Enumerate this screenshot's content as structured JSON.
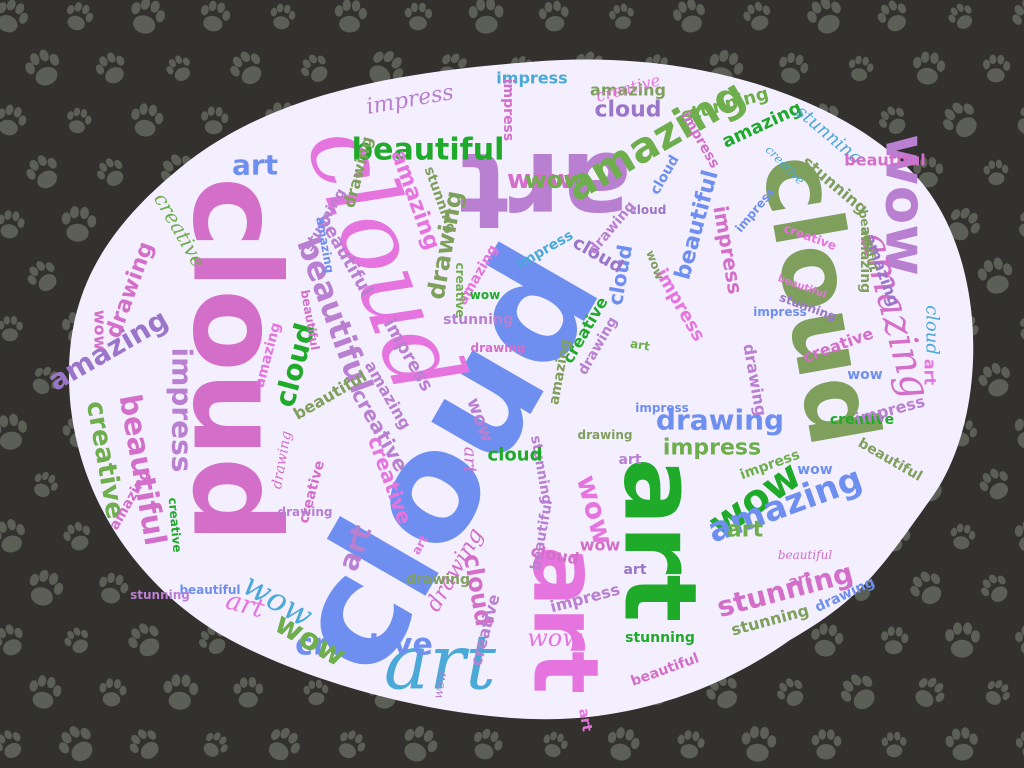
{
  "colors": {
    "background": "#33312d",
    "paw": "#5b5f55",
    "blob": "#f3efff",
    "palette": [
      "#6f8ff0",
      "#d36ec9",
      "#b97fd0",
      "#e574df",
      "#7fa05c",
      "#1faa2a",
      "#4aa9d6",
      "#9b75c9",
      "#6fae4c"
    ]
  },
  "words": [
    {
      "text": "cloud",
      "color": "#6f8ff0",
      "font": "sans"
    },
    {
      "text": "cloud",
      "color": "#d36ec9",
      "font": "sans"
    },
    {
      "text": "art",
      "color": "#b97fd0",
      "font": "sans"
    },
    {
      "text": "cloud",
      "color": "#e574df",
      "font": "script"
    },
    {
      "text": "cloud",
      "color": "#7fa05c",
      "font": "sans"
    },
    {
      "text": "art",
      "color": "#1faa2a",
      "font": "sans"
    },
    {
      "text": "art",
      "color": "#e574df",
      "font": "sans"
    },
    {
      "text": "art",
      "color": "#4aa9d6",
      "font": "script"
    },
    {
      "text": "wow",
      "color": "#b97fd0",
      "font": "sans"
    },
    {
      "text": "amazing",
      "color": "#6fae4c",
      "font": "sans"
    },
    {
      "text": "beautiful",
      "color": "#1faa2a",
      "font": "sans"
    },
    {
      "text": "amazing",
      "color": "#d36ec9",
      "font": "script"
    },
    {
      "text": "wow",
      "color": "#1faa2a",
      "font": "sans"
    },
    {
      "text": "amazing",
      "color": "#6f8ff0",
      "font": "sans"
    },
    {
      "text": "drawing",
      "color": "#6f8ff0",
      "font": "sans"
    },
    {
      "text": "impress",
      "color": "#6fae4c",
      "font": "sans"
    },
    {
      "text": "art",
      "color": "#6f8ff0",
      "font": "sans"
    },
    {
      "text": "beautiful",
      "color": "#d36ec9",
      "font": "sans"
    },
    {
      "text": "impress",
      "color": "#b97fd0",
      "font": "sans"
    },
    {
      "text": "amazing",
      "color": "#9b75c9",
      "font": "sans"
    },
    {
      "text": "creative",
      "color": "#6fae4c",
      "font": "sans"
    },
    {
      "text": "beautiful",
      "color": "#b97fd0",
      "font": "sans"
    },
    {
      "text": "drawing",
      "color": "#d36ec9",
      "font": "sans"
    },
    {
      "text": "stunning",
      "color": "#d36ec9",
      "font": "sans"
    },
    {
      "text": "creative",
      "color": "#6f8ff0",
      "font": "sans"
    },
    {
      "text": "drawing",
      "color": "#7fa05c",
      "font": "sans"
    },
    {
      "text": "cloud",
      "color": "#1faa2a",
      "font": "sans"
    },
    {
      "text": "wow",
      "color": "#e574df",
      "font": "sans"
    },
    {
      "text": "wow",
      "color": "#d36ec9",
      "font": "sans"
    },
    {
      "text": "wow",
      "color": "#6fae4c",
      "font": "sans"
    },
    {
      "text": "wow",
      "color": "#4aa9d6",
      "font": "script"
    },
    {
      "text": "cloud",
      "color": "#d36ec9",
      "font": "sans"
    },
    {
      "text": "creative",
      "color": "#b97fd0",
      "font": "sans"
    },
    {
      "text": "creative",
      "color": "#6fae4c",
      "font": "script"
    },
    {
      "text": "drawing",
      "color": "#d36ec9",
      "font": "script"
    },
    {
      "text": "art",
      "color": "#e574df",
      "font": "script"
    },
    {
      "text": "art",
      "color": "#b97fd0",
      "font": "sans"
    },
    {
      "text": "art",
      "color": "#6fae4c",
      "font": "sans"
    },
    {
      "text": "cloud",
      "color": "#9b75c9",
      "font": "sans"
    },
    {
      "text": "wow",
      "color": "#e574df",
      "font": "script"
    },
    {
      "text": "beautiful",
      "color": "#6f8ff0",
      "font": "sans"
    },
    {
      "text": "impress",
      "color": "#d36ec9",
      "font": "sans"
    },
    {
      "text": "stunning",
      "color": "#6fae4c",
      "font": "sans"
    },
    {
      "text": "amazing",
      "color": "#1faa2a",
      "font": "sans"
    },
    {
      "text": "stunning",
      "color": "#4aa9d6",
      "font": "script"
    },
    {
      "text": "impress",
      "color": "#b97fd0",
      "font": "script"
    },
    {
      "text": "wow",
      "color": "#6fae4c",
      "font": "sans"
    },
    {
      "text": "amazing",
      "color": "#e574df",
      "font": "sans"
    },
    {
      "text": "beautiful",
      "color": "#b97fd0",
      "font": "sans"
    },
    {
      "text": "creative",
      "color": "#e574df",
      "font": "sans"
    },
    {
      "text": "impress",
      "color": "#e574df",
      "font": "sans"
    },
    {
      "text": "creative",
      "color": "#1faa2a",
      "font": "sans"
    },
    {
      "text": "stunning",
      "color": "#b97fd0",
      "font": "sans"
    },
    {
      "text": "cloud",
      "color": "#6f8ff0",
      "font": "sans"
    },
    {
      "text": "cloud",
      "color": "#9b75c9",
      "font": "sans"
    },
    {
      "text": "drawing",
      "color": "#b97fd0",
      "font": "sans"
    },
    {
      "text": "stunning",
      "color": "#7fa05c",
      "font": "sans"
    },
    {
      "text": "amazing",
      "color": "#9b75c9",
      "font": "sans"
    },
    {
      "text": "art",
      "color": "#e574df",
      "font": "sans"
    },
    {
      "text": "impress",
      "color": "#b97fd0",
      "font": "sans"
    },
    {
      "text": "wow",
      "color": "#6f8ff0",
      "font": "sans"
    },
    {
      "text": "creative",
      "color": "#d36ec9",
      "font": "sans"
    },
    {
      "text": "beautiful",
      "color": "#7fa05c",
      "font": "sans"
    },
    {
      "text": "drawing",
      "color": "#7fa05c",
      "font": "sans"
    },
    {
      "text": "stunning",
      "color": "#b97fd0",
      "font": "sans"
    },
    {
      "text": "amazing",
      "color": "#d36ec9",
      "font": "sans"
    },
    {
      "text": "impress",
      "color": "#6f8ff0",
      "font": "sans"
    },
    {
      "text": "art",
      "color": "#b97fd0",
      "font": "sans"
    },
    {
      "text": "art",
      "color": "#d36ec9",
      "font": "script"
    },
    {
      "text": "creative",
      "color": "#4aa9d6",
      "font": "script"
    },
    {
      "text": "beautiful",
      "color": "#d36ec9",
      "font": "sans"
    },
    {
      "text": "impress",
      "color": "#4aa9d6",
      "font": "sans"
    },
    {
      "text": "drawing",
      "color": "#d36ec9",
      "font": "script"
    },
    {
      "text": "amazing",
      "color": "#7fa05c",
      "font": "sans"
    },
    {
      "text": "stunning",
      "color": "#7fa05c",
      "font": "sans"
    },
    {
      "text": "wow",
      "color": "#d36ec9",
      "font": "sans"
    },
    {
      "text": "cloud",
      "color": "#4aa9d6",
      "font": "script"
    },
    {
      "text": "art",
      "color": "#e574df",
      "font": "sans"
    },
    {
      "text": "impress",
      "color": "#d36ec9",
      "font": "sans"
    },
    {
      "text": "beautiful",
      "color": "#6f8ff0",
      "font": "sans"
    },
    {
      "text": "creative",
      "color": "#1faa2a",
      "font": "sans"
    },
    {
      "text": "drawing",
      "color": "#b97fd0",
      "font": "sans"
    },
    {
      "text": "amazing",
      "color": "#e574df",
      "font": "sans"
    },
    {
      "text": "stunning",
      "color": "#b97fd0",
      "font": "sans"
    },
    {
      "text": "cloud",
      "color": "#6f8ff0",
      "font": "sans"
    },
    {
      "text": "wow",
      "color": "#1faa2a",
      "font": "sans"
    },
    {
      "text": "beautiful",
      "color": "#7fa05c",
      "font": "sans"
    },
    {
      "text": "impress",
      "color": "#b97fd0",
      "font": "sans"
    },
    {
      "text": "drawing",
      "color": "#7fa05c",
      "font": "sans"
    },
    {
      "text": "amazing",
      "color": "#b97fd0",
      "font": "sans"
    },
    {
      "text": "creative",
      "color": "#e574df",
      "font": "sans"
    },
    {
      "text": "beautiful",
      "color": "#e574df",
      "font": "sans"
    },
    {
      "text": "wow",
      "color": "#6f8ff0",
      "font": "sans"
    },
    {
      "text": "cloud",
      "color": "#9b75c9",
      "font": "sans"
    },
    {
      "text": "art",
      "color": "#6fae4c",
      "font": "sans"
    },
    {
      "text": "impress",
      "color": "#4aa9d6",
      "font": "sans"
    },
    {
      "text": "beautiful",
      "color": "#d36ec9",
      "font": "script"
    },
    {
      "text": "drawing",
      "color": "#6f8ff0",
      "font": "sans"
    },
    {
      "text": "stunning",
      "color": "#9b75c9",
      "font": "sans"
    },
    {
      "text": "creative",
      "color": "#1faa2a",
      "font": "sans"
    },
    {
      "text": "amazing",
      "color": "#7fa05c",
      "font": "sans"
    },
    {
      "text": "art",
      "color": "#d36ec9",
      "font": "sans"
    },
    {
      "text": "wow",
      "color": "#b97fd0",
      "font": "script"
    },
    {
      "text": "beautiful",
      "color": "#d36ec9",
      "font": "sans"
    },
    {
      "text": "impress",
      "color": "#b97fd0",
      "font": "sans"
    },
    {
      "text": "drawing",
      "color": "#7fa05c",
      "font": "sans"
    },
    {
      "text": "amazing",
      "color": "#e574df",
      "font": "sans"
    },
    {
      "text": "cloud",
      "color": "#1faa2a",
      "font": "sans"
    },
    {
      "text": "wow",
      "color": "#b97fd0",
      "font": "sans"
    },
    {
      "text": "impress",
      "color": "#6f8ff0",
      "font": "sans"
    },
    {
      "text": "stunning",
      "color": "#7fa05c",
      "font": "sans"
    },
    {
      "text": "creative",
      "color": "#d36ec9",
      "font": "sans"
    },
    {
      "text": "drawing",
      "color": "#b97fd0",
      "font": "sans"
    },
    {
      "text": "impress",
      "color": "#d36ec9",
      "font": "sans"
    },
    {
      "text": "amazing",
      "color": "#6f8ff0",
      "font": "sans"
    },
    {
      "text": "beautiful",
      "color": "#7fa05c",
      "font": "sans"
    },
    {
      "text": "wow",
      "color": "#d36ec9",
      "font": "sans"
    },
    {
      "text": "drawing",
      "color": "#b97fd0",
      "font": "sans"
    },
    {
      "text": "creative",
      "color": "#6fae4c",
      "font": "sans"
    },
    {
      "text": "beautiful",
      "color": "#b97fd0",
      "font": "sans"
    },
    {
      "text": "art",
      "color": "#e574df",
      "font": "sans"
    },
    {
      "text": "impress",
      "color": "#6fae4c",
      "font": "sans"
    },
    {
      "text": "stunning",
      "color": "#b97fd0",
      "font": "sans"
    },
    {
      "text": "wow",
      "color": "#7fa05c",
      "font": "sans"
    },
    {
      "text": "art",
      "color": "#9b75c9",
      "font": "sans"
    },
    {
      "text": "cloud",
      "color": "#d36ec9",
      "font": "sans"
    },
    {
      "text": "creative",
      "color": "#b97fd0",
      "font": "sans"
    },
    {
      "text": "amazing",
      "color": "#7fa05c",
      "font": "sans"
    },
    {
      "text": "drawing",
      "color": "#d36ec9",
      "font": "sans"
    },
    {
      "text": "impress",
      "color": "#6f8ff0",
      "font": "sans"
    },
    {
      "text": "beautiful",
      "color": "#d36ec9",
      "font": "sans"
    },
    {
      "text": "stunning",
      "color": "#1faa2a",
      "font": "sans"
    },
    {
      "text": "creative",
      "color": "#e574df",
      "font": "script"
    }
  ]
}
